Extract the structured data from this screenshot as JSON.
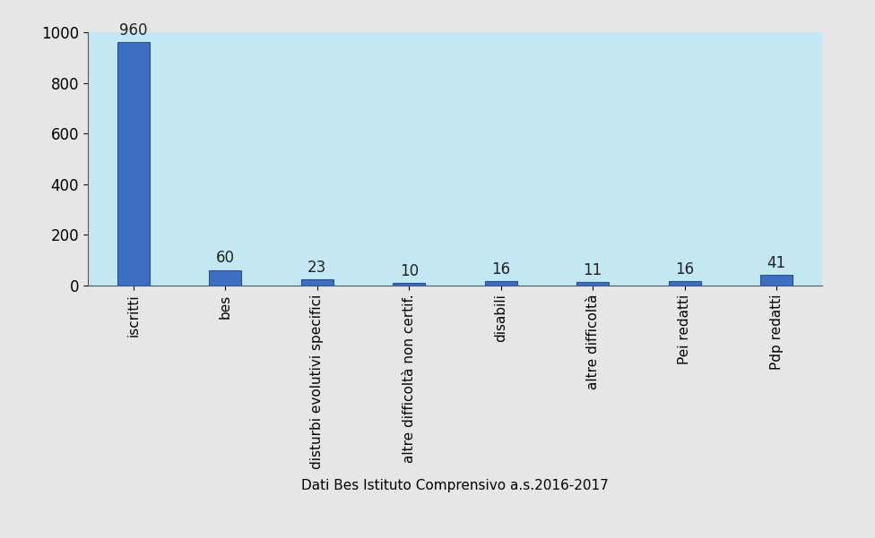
{
  "chart_data": {
    "type": "bar",
    "categories": [
      "iscritti",
      "bes",
      "disturbi evolutivi specifici",
      "altre difficoltà non certif.",
      "disabili",
      "altre difficoltà",
      "Pei redatti",
      "Pdp redatti"
    ],
    "values": [
      960,
      60,
      23,
      10,
      16,
      11,
      16,
      41
    ],
    "color": "#3d6fc1",
    "x_label": "Dati Bes Istituto Comprensivo a.s.2016-2017",
    "ylim": [
      0,
      1000
    ],
    "yticks": [
      0,
      200,
      400,
      600,
      800,
      1000
    ],
    "grid": false,
    "data_labels": true
  }
}
